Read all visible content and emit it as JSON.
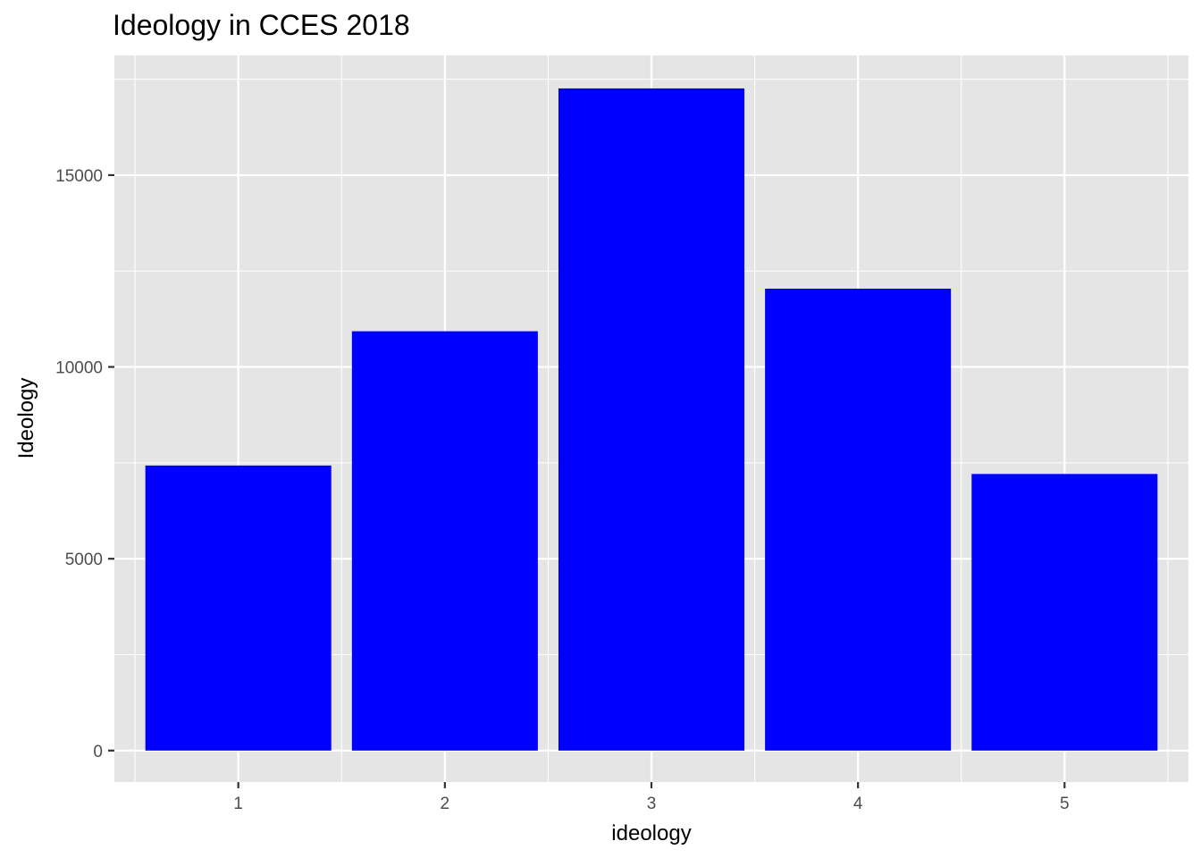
{
  "chart_data": {
    "type": "bar",
    "title": "Ideology in CCES 2018",
    "xlabel": "ideology",
    "ylabel": "Ideology",
    "categories": [
      "1",
      "2",
      "3",
      "4",
      "5"
    ],
    "values": [
      7430,
      10930,
      17260,
      12040,
      7210
    ],
    "ylim": [
      -820,
      18120
    ],
    "yticks": [
      0,
      5000,
      10000,
      15000
    ],
    "yticklabels": [
      "0",
      "5000",
      "10000",
      "15000"
    ],
    "grid": true,
    "legend": "none",
    "colors": {
      "bar": "#0000ff",
      "panel": "#e5e5e5",
      "grid": "#ffffff",
      "tick_text": "#4d4d4d",
      "title_text": "#000000"
    }
  }
}
